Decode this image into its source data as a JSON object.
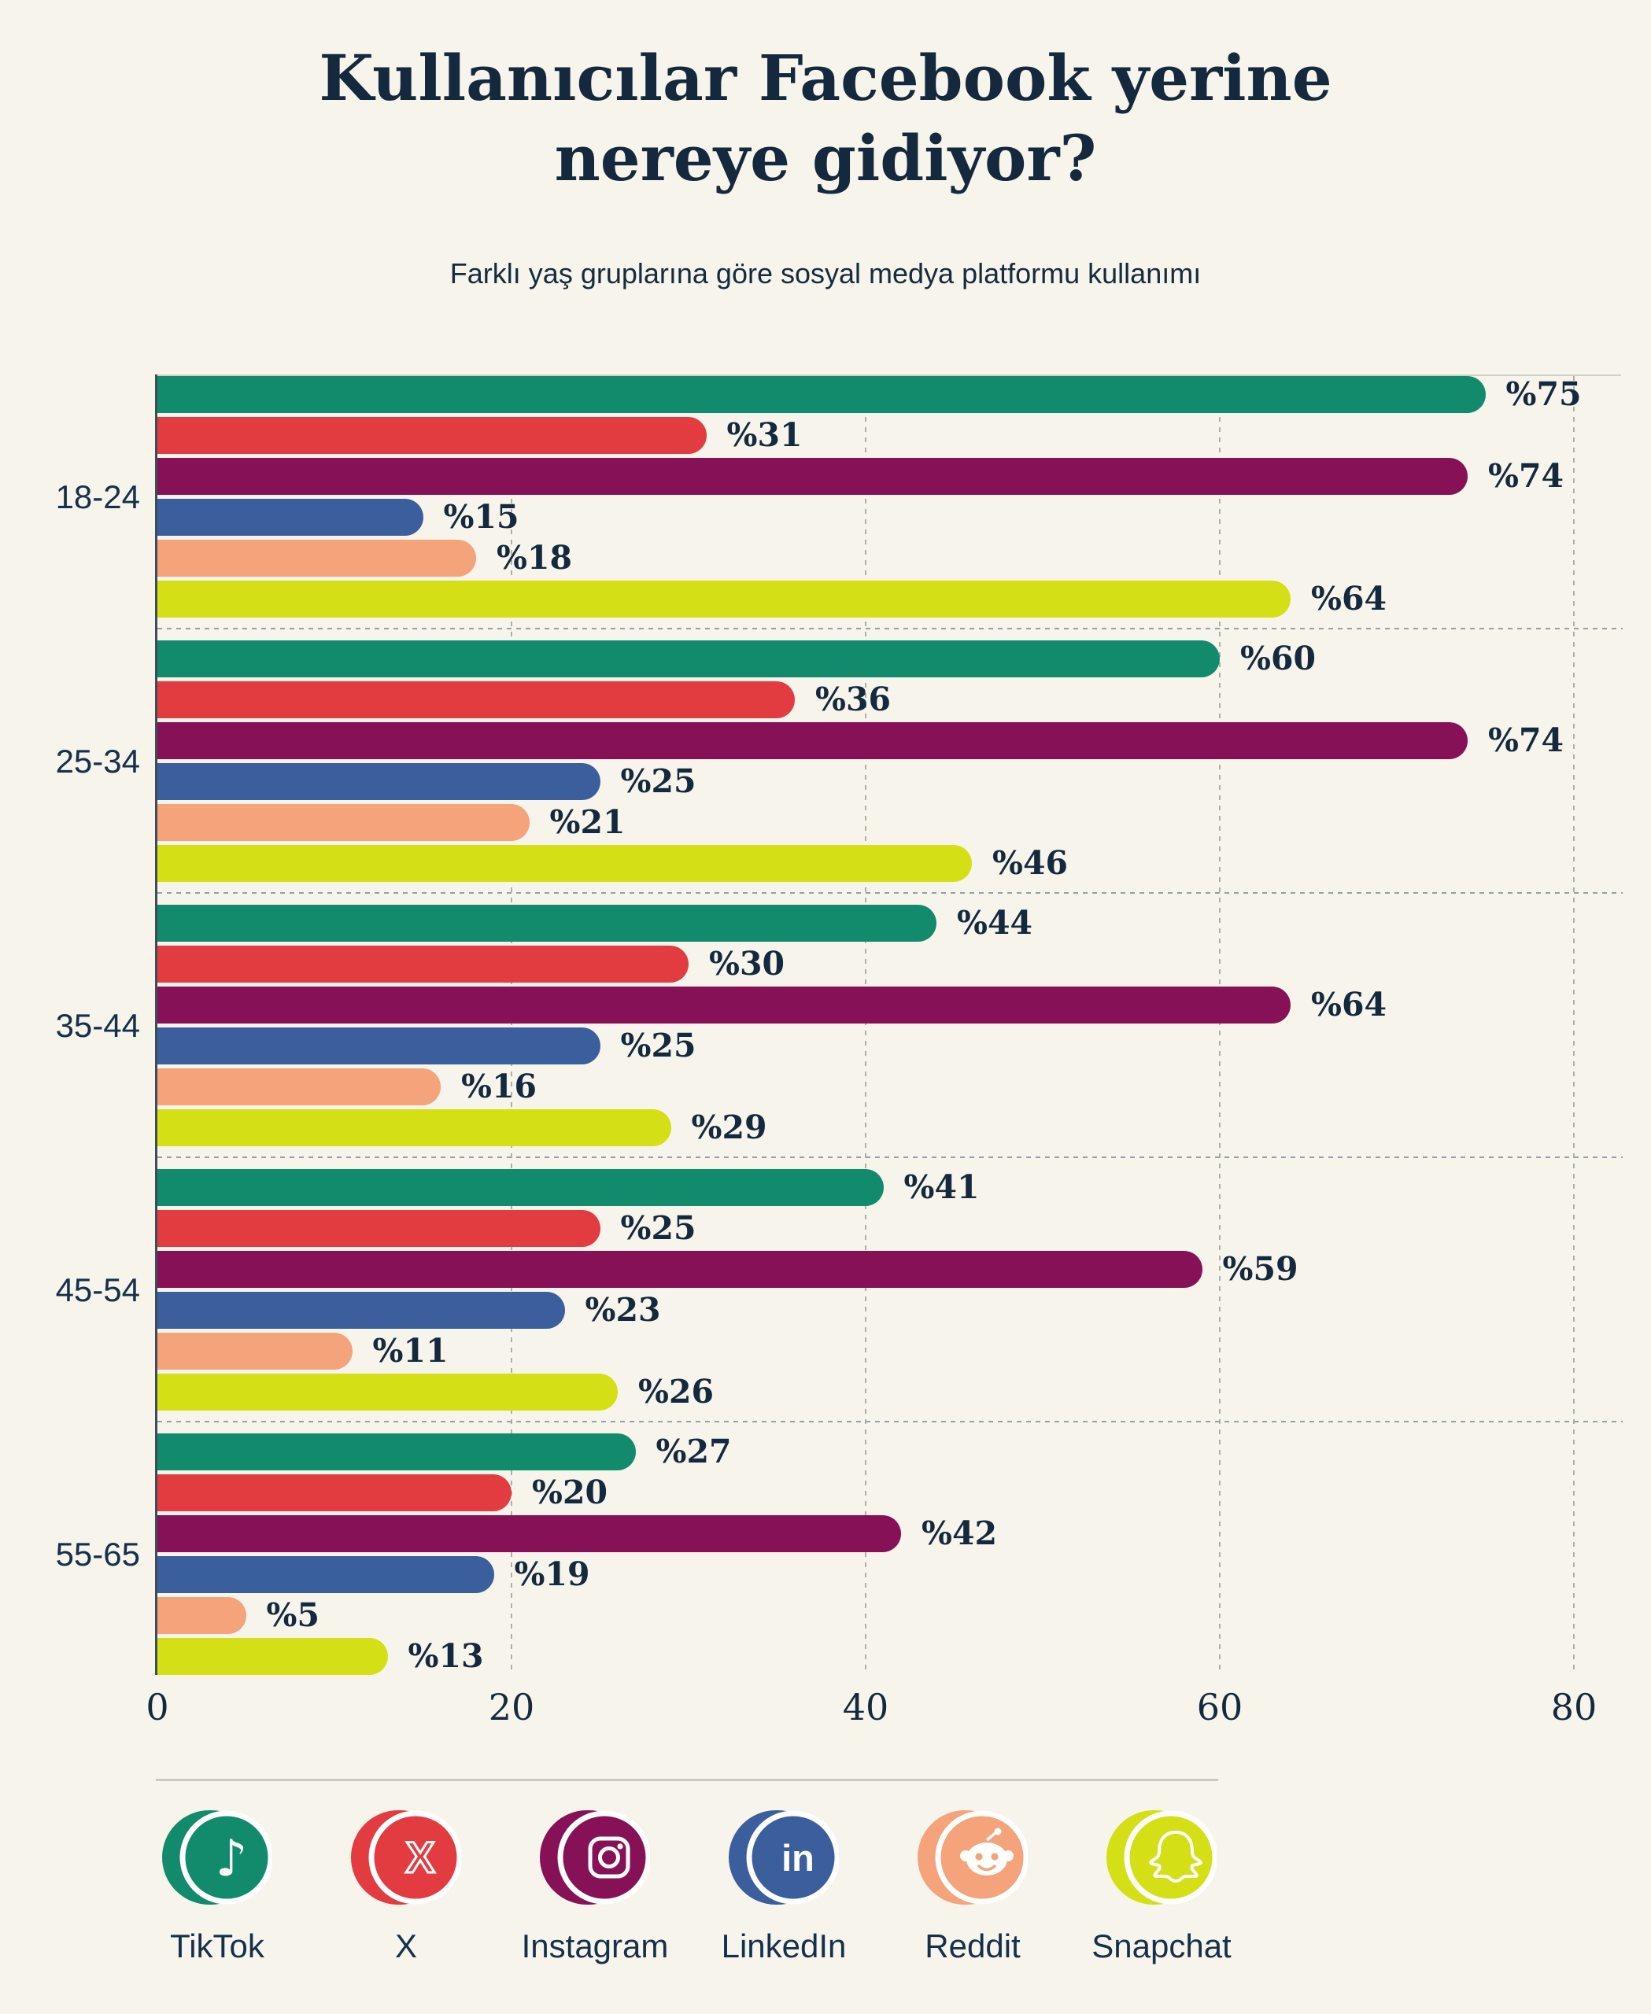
{
  "header": {
    "title_line1": "Kullanıcılar Facebook yerine",
    "title_line2": "nereye gidiyor?",
    "subtitle": "Farklı yaş gruplarına göre sosyal medya platformu kullanımı"
  },
  "chart_data": {
    "type": "bar",
    "orientation": "horizontal",
    "value_prefix": "%",
    "categories": [
      "18-24",
      "25-34",
      "35-44",
      "45-54",
      "55-65"
    ],
    "series": [
      {
        "name": "TikTok",
        "color": "#128a6c",
        "values": [
          75,
          60,
          44,
          41,
          27
        ]
      },
      {
        "name": "X",
        "color": "#e23c41",
        "values": [
          31,
          36,
          30,
          25,
          20
        ]
      },
      {
        "name": "Instagram",
        "color": "#871157",
        "values": [
          74,
          74,
          64,
          59,
          42
        ]
      },
      {
        "name": "LinkedIn",
        "color": "#3b5e9c",
        "values": [
          15,
          25,
          25,
          23,
          19
        ]
      },
      {
        "name": "Reddit",
        "color": "#f4a37b",
        "values": [
          18,
          21,
          16,
          11,
          5
        ]
      },
      {
        "name": "Snapchat",
        "color": "#d5df16",
        "values": [
          64,
          46,
          29,
          26,
          13
        ]
      }
    ],
    "xlim": [
      0,
      80
    ],
    "x_ticks": [
      "0",
      "20",
      "40",
      "60",
      "80"
    ],
    "grid": "dashed-vertical-at-ticks",
    "legend_position": "bottom"
  },
  "legend": {
    "items": [
      {
        "label": "TikTok",
        "color": "#128a6c",
        "icon": "tiktok-icon"
      },
      {
        "label": "X",
        "color": "#e23c41",
        "icon": "x-icon"
      },
      {
        "label": "Instagram",
        "color": "#871157",
        "icon": "instagram-icon"
      },
      {
        "label": "LinkedIn",
        "color": "#3b5e9c",
        "icon": "linkedin-icon"
      },
      {
        "label": "Reddit",
        "color": "#f4a37b",
        "icon": "reddit-icon"
      },
      {
        "label": "Snapchat",
        "color": "#d5df16",
        "icon": "snapchat-icon"
      }
    ]
  },
  "colors": {
    "background": "#f7f4ec",
    "text_navy": "#14293d",
    "gridline": "#acb0ab",
    "axis": "#3e4d5a",
    "divider": "#c9c9c3"
  }
}
